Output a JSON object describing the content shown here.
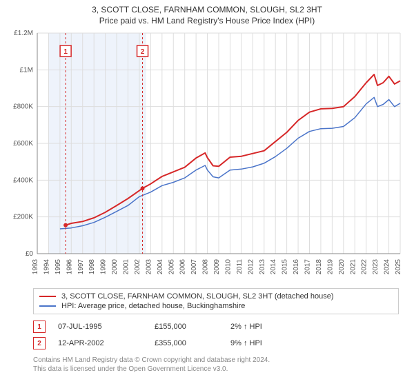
{
  "title_line1": "3, SCOTT CLOSE, FARNHAM COMMON, SLOUGH, SL2 3HT",
  "title_line2": "Price paid vs. HM Land Registry's House Price Index (HPI)",
  "title_fontsize": 12,
  "chart": {
    "type": "line",
    "background_color": "#ffffff",
    "plot_bg_color": "#ffffff",
    "grid_color": "#dddddd",
    "axis_color": "#888888",
    "label_color": "#555555",
    "x": {
      "min": 1993,
      "max": 2025,
      "tick_step": 1,
      "tick_rotation": -90,
      "tick_fontsize": 10
    },
    "y": {
      "min": 0,
      "max": 1200000,
      "tick_step": 200000,
      "tick_labels": [
        "£0",
        "£200K",
        "£400K",
        "£600K",
        "£800K",
        "£1M",
        "£1.2M"
      ],
      "tick_fontsize": 10
    },
    "shaded_hpi_range_bg": "#eef3fb",
    "series": [
      {
        "name": "property_price",
        "label": "3, SCOTT CLOSE, FARNHAM COMMON, SLOUGH, SL2 3HT (detached house)",
        "color": "#d62728",
        "line_width": 2,
        "points": [
          [
            1995.5,
            155000
          ],
          [
            1996,
            165000
          ],
          [
            1997,
            175000
          ],
          [
            1998,
            195000
          ],
          [
            1999,
            225000
          ],
          [
            2000,
            262000
          ],
          [
            2001,
            300000
          ],
          [
            2002.28,
            355000
          ],
          [
            2003,
            380000
          ],
          [
            2004,
            420000
          ],
          [
            2005,
            445000
          ],
          [
            2006,
            470000
          ],
          [
            2007,
            520000
          ],
          [
            2007.8,
            548000
          ],
          [
            2008,
            522000
          ],
          [
            2008.5,
            478000
          ],
          [
            2009,
            475000
          ],
          [
            2010,
            525000
          ],
          [
            2011,
            530000
          ],
          [
            2012,
            545000
          ],
          [
            2013,
            560000
          ],
          [
            2014,
            610000
          ],
          [
            2015,
            660000
          ],
          [
            2016,
            725000
          ],
          [
            2017,
            770000
          ],
          [
            2018,
            788000
          ],
          [
            2019,
            790000
          ],
          [
            2020,
            800000
          ],
          [
            2021,
            855000
          ],
          [
            2022,
            930000
          ],
          [
            2022.7,
            975000
          ],
          [
            2023,
            915000
          ],
          [
            2023.5,
            930000
          ],
          [
            2024,
            965000
          ],
          [
            2024.5,
            923000
          ],
          [
            2025,
            940000
          ]
        ]
      },
      {
        "name": "hpi",
        "label": "HPI: Average price, detached house, Buckinghamshire",
        "color": "#4a74c9",
        "line_width": 1.5,
        "points": [
          [
            1995,
            135000
          ],
          [
            1996,
            140000
          ],
          [
            1997,
            152000
          ],
          [
            1998,
            170000
          ],
          [
            1999,
            198000
          ],
          [
            2000,
            230000
          ],
          [
            2001,
            262000
          ],
          [
            2002,
            310000
          ],
          [
            2003,
            335000
          ],
          [
            2004,
            370000
          ],
          [
            2005,
            388000
          ],
          [
            2006,
            412000
          ],
          [
            2007,
            455000
          ],
          [
            2007.8,
            480000
          ],
          [
            2008,
            455000
          ],
          [
            2008.5,
            418000
          ],
          [
            2009,
            412000
          ],
          [
            2010,
            455000
          ],
          [
            2011,
            460000
          ],
          [
            2012,
            472000
          ],
          [
            2013,
            492000
          ],
          [
            2014,
            528000
          ],
          [
            2015,
            573000
          ],
          [
            2016,
            628000
          ],
          [
            2017,
            665000
          ],
          [
            2018,
            680000
          ],
          [
            2019,
            682000
          ],
          [
            2020,
            692000
          ],
          [
            2021,
            740000
          ],
          [
            2022,
            815000
          ],
          [
            2022.7,
            850000
          ],
          [
            2023,
            800000
          ],
          [
            2023.5,
            812000
          ],
          [
            2024,
            838000
          ],
          [
            2024.5,
            800000
          ],
          [
            2025,
            818000
          ]
        ]
      }
    ],
    "markers": [
      {
        "id": "1",
        "x": 1995.5,
        "y": 155000,
        "box_color": "#d62728",
        "guide_line": true
      },
      {
        "id": "2",
        "x": 2002.28,
        "y": 355000,
        "box_color": "#d62728",
        "guide_line": true
      }
    ],
    "guide_line_color": "#d62728",
    "guide_line_dash": "3,3"
  },
  "legend": {
    "items": [
      {
        "color": "#d62728",
        "label": "3, SCOTT CLOSE, FARNHAM COMMON, SLOUGH, SL2 3HT (detached house)"
      },
      {
        "color": "#4a74c9",
        "label": "HPI: Average price, detached house, Buckinghamshire"
      }
    ]
  },
  "sales": [
    {
      "marker_id": "1",
      "marker_color": "#d62728",
      "date": "07-JUL-1995",
      "price": "£155,000",
      "delta": "2% ↑ HPI"
    },
    {
      "marker_id": "2",
      "marker_color": "#d62728",
      "date": "12-APR-2002",
      "price": "£355,000",
      "delta": "9% ↑ HPI"
    }
  ],
  "footer": {
    "line1": "Contains HM Land Registry data © Crown copyright and database right 2024.",
    "line2": "This data is licensed under the Open Government Licence v3.0."
  }
}
